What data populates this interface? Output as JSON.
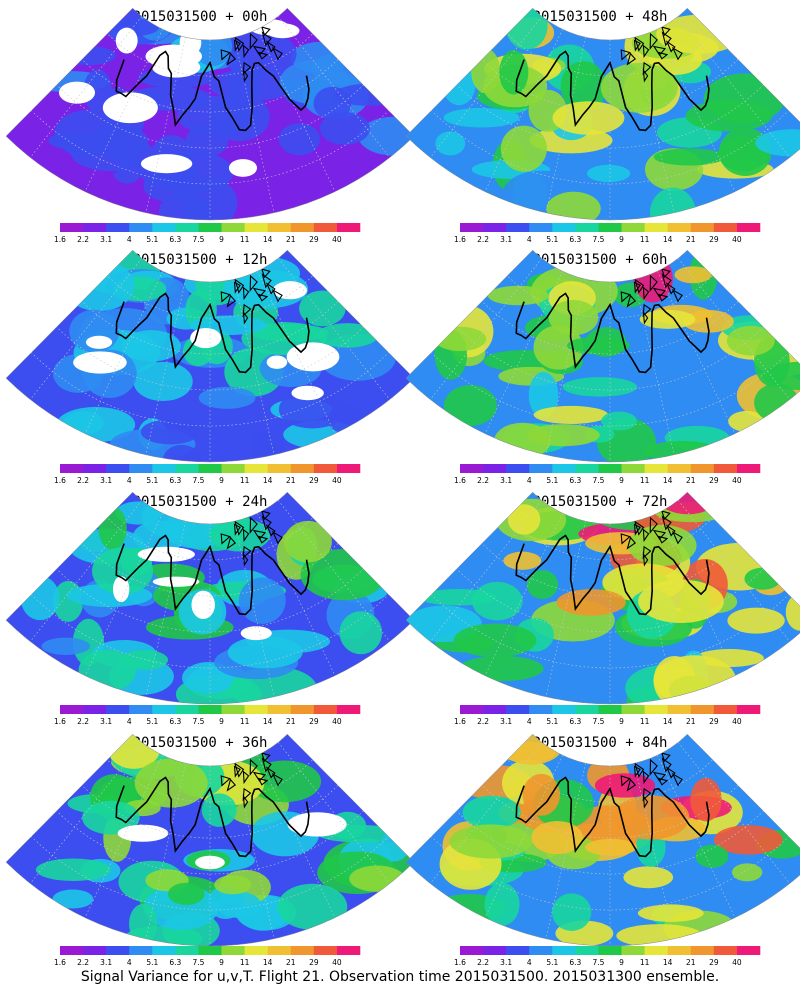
{
  "panels": [
    {
      "title": "2015031500 + 00h",
      "intensity": 0.25,
      "landmask": 0.6
    },
    {
      "title": "2015031500 + 12h",
      "intensity": 0.38,
      "landmask": 0.45
    },
    {
      "title": "2015031500 + 24h",
      "intensity": 0.5,
      "landmask": 0.3
    },
    {
      "title": "2015031500 + 36h",
      "intensity": 0.6,
      "landmask": 0.18
    },
    {
      "title": "2015031500 + 48h",
      "intensity": 0.68,
      "landmask": 0.0
    },
    {
      "title": "2015031500 + 60h",
      "intensity": 0.75,
      "landmask": 0.0
    },
    {
      "title": "2015031500 + 72h",
      "intensity": 0.8,
      "landmask": 0.0
    },
    {
      "title": "2015031500 + 84h",
      "intensity": 0.86,
      "landmask": 0.0
    }
  ],
  "colorbar": {
    "labels": [
      "1.6",
      "2.2",
      "3.1",
      "4",
      "5.1",
      "6.3",
      "7.5",
      "9",
      "11",
      "14",
      "21",
      "29",
      "40"
    ],
    "colors": [
      "#9a1ad4",
      "#7a22e6",
      "#3c4ef0",
      "#2f8cf2",
      "#1cc6e6",
      "#18d69e",
      "#20c848",
      "#8ed838",
      "#e6e63a",
      "#f0c032",
      "#f0962c",
      "#f05a3a",
      "#ee1a78"
    ]
  },
  "caption": "Signal Variance for u,v,T. Flight 21. Observation time 2015031500. 2015031300 ensemble.",
  "colors": {
    "coast": "#000000",
    "grid": "#c8c8c8",
    "missing": "#ffffff"
  }
}
